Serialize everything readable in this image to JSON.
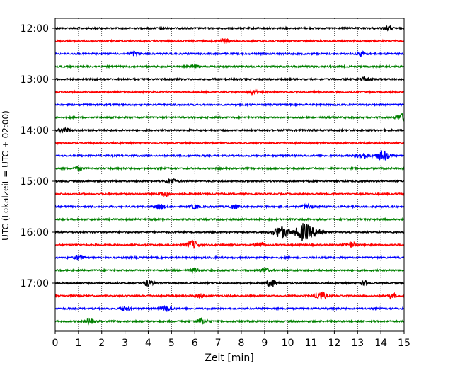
{
  "chart_data": {
    "type": "line",
    "title": "",
    "xlabel": "Zeit  [min]",
    "ylabel": "UTC (Lokalzeit = UTC + 02:00)",
    "xlim": [
      0,
      15
    ],
    "x_ticks": [
      "0",
      "1",
      "2",
      "3",
      "4",
      "5",
      "6",
      "7",
      "8",
      "9",
      "10",
      "11",
      "12",
      "13",
      "14",
      "15"
    ],
    "y_ticks": [
      "12:00",
      "13:00",
      "14:00",
      "15:00",
      "16:00",
      "17:00"
    ],
    "grid": "vertical dotted",
    "trace_interval_min": 15,
    "trace_colors": [
      "#000000",
      "#ff0000",
      "#0000ff",
      "#008000"
    ],
    "traces": [
      {
        "start": "12:00",
        "color": "#000000",
        "events": [
          {
            "t": 4.6,
            "amp": 2
          },
          {
            "t": 14.3,
            "amp": 3
          }
        ]
      },
      {
        "start": "12:15",
        "color": "#ff0000",
        "events": [
          {
            "t": 7.3,
            "amp": 3
          }
        ]
      },
      {
        "start": "12:30",
        "color": "#0000ff",
        "events": [
          {
            "t": 3.4,
            "amp": 3
          },
          {
            "t": 13.2,
            "amp": 3
          }
        ]
      },
      {
        "start": "12:45",
        "color": "#008000",
        "events": [
          {
            "t": 6.0,
            "amp": 2
          }
        ]
      },
      {
        "start": "13:00",
        "color": "#000000",
        "events": [
          {
            "t": 13.3,
            "amp": 4
          }
        ]
      },
      {
        "start": "13:15",
        "color": "#ff0000",
        "events": [
          {
            "t": 8.5,
            "amp": 3
          }
        ]
      },
      {
        "start": "13:30",
        "color": "#0000ff",
        "events": []
      },
      {
        "start": "13:45",
        "color": "#008000",
        "events": [
          {
            "t": 14.9,
            "amp": 5
          }
        ]
      },
      {
        "start": "14:00",
        "color": "#000000",
        "events": [
          {
            "t": 0.4,
            "amp": 4
          }
        ]
      },
      {
        "start": "14:15",
        "color": "#ff0000",
        "events": []
      },
      {
        "start": "14:30",
        "color": "#0000ff",
        "events": [
          {
            "t": 13.2,
            "amp": 5
          },
          {
            "t": 14.1,
            "amp": 7
          }
        ]
      },
      {
        "start": "14:45",
        "color": "#008000",
        "events": [
          {
            "t": 1.0,
            "amp": 2
          }
        ]
      },
      {
        "start": "15:00",
        "color": "#000000",
        "events": [
          {
            "t": 5.0,
            "amp": 4
          }
        ]
      },
      {
        "start": "15:15",
        "color": "#ff0000",
        "events": [
          {
            "t": 4.7,
            "amp": 4
          }
        ]
      },
      {
        "start": "15:30",
        "color": "#0000ff",
        "events": [
          {
            "t": 4.5,
            "amp": 4
          },
          {
            "t": 6.0,
            "amp": 3
          },
          {
            "t": 7.7,
            "amp": 3
          },
          {
            "t": 10.8,
            "amp": 4
          }
        ]
      },
      {
        "start": "15:45",
        "color": "#008000",
        "events": []
      },
      {
        "start": "16:00",
        "color": "#000000",
        "events": [
          {
            "t": 9.7,
            "amp": 9
          },
          {
            "t": 10.7,
            "amp": 12
          },
          {
            "t": 11.3,
            "amp": 5
          }
        ]
      },
      {
        "start": "16:15",
        "color": "#ff0000",
        "events": [
          {
            "t": 5.9,
            "amp": 6
          },
          {
            "t": 8.8,
            "amp": 4
          },
          {
            "t": 12.7,
            "amp": 4
          }
        ]
      },
      {
        "start": "16:30",
        "color": "#0000ff",
        "events": [
          {
            "t": 1.0,
            "amp": 3
          }
        ]
      },
      {
        "start": "16:45",
        "color": "#008000",
        "events": [
          {
            "t": 6.0,
            "amp": 3
          },
          {
            "t": 9.0,
            "amp": 3
          }
        ]
      },
      {
        "start": "17:00",
        "color": "#000000",
        "events": [
          {
            "t": 4.0,
            "amp": 4
          },
          {
            "t": 9.3,
            "amp": 5
          },
          {
            "t": 13.3,
            "amp": 3
          }
        ]
      },
      {
        "start": "17:15",
        "color": "#ff0000",
        "events": [
          {
            "t": 6.2,
            "amp": 3
          },
          {
            "t": 11.4,
            "amp": 6
          },
          {
            "t": 14.5,
            "amp": 3
          }
        ]
      },
      {
        "start": "17:30",
        "color": "#0000ff",
        "events": [
          {
            "t": 3.0,
            "amp": 3
          },
          {
            "t": 4.8,
            "amp": 4
          }
        ]
      },
      {
        "start": "17:45",
        "color": "#008000",
        "events": [
          {
            "t": 1.5,
            "amp": 3
          },
          {
            "t": 6.3,
            "amp": 4
          }
        ]
      }
    ]
  }
}
